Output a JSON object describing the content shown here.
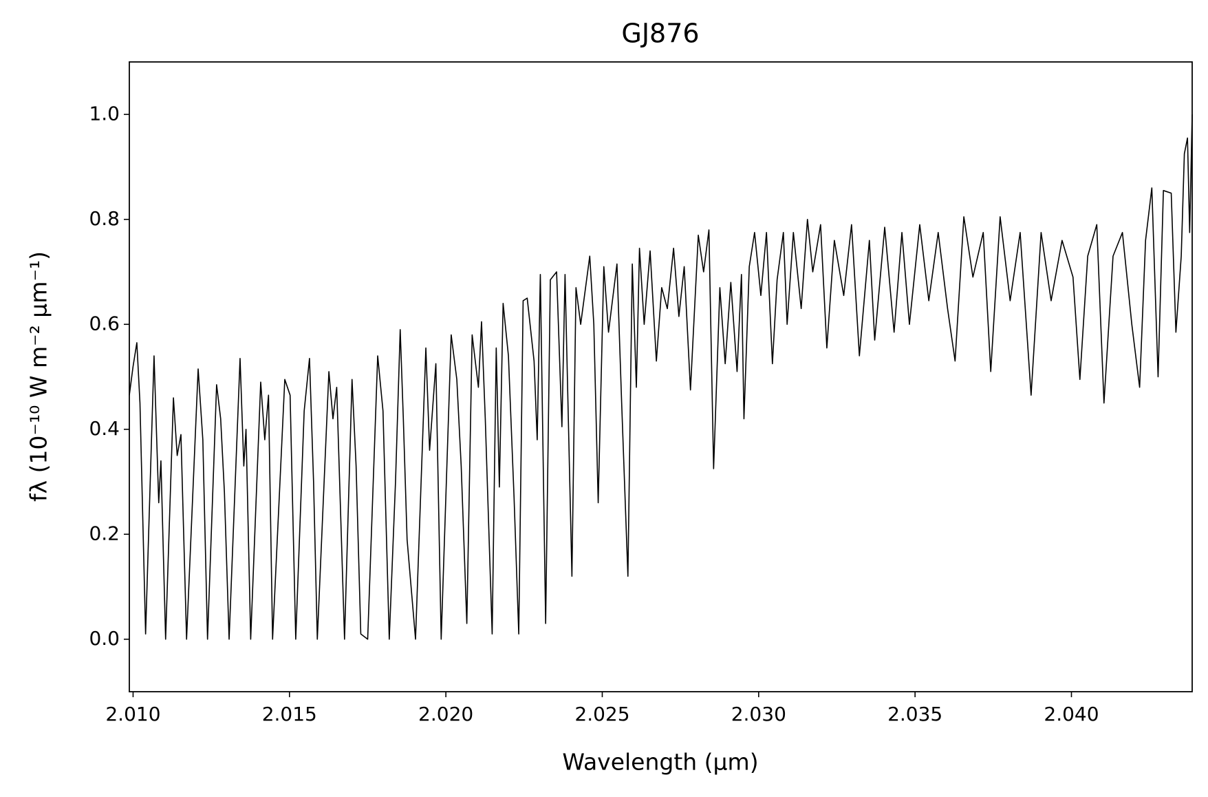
{
  "chart_data": {
    "type": "line",
    "title": "GJ876",
    "xlabel": "Wavelength (μm)",
    "ylabel": "fλ (10⁻¹⁰ W m⁻² μm⁻¹)",
    "xlim": [
      2.00988,
      2.04386
    ],
    "ylim": [
      -0.1,
      1.1
    ],
    "xticks": [
      {
        "value": 2.01,
        "label": "2.010"
      },
      {
        "value": 2.015,
        "label": "2.015"
      },
      {
        "value": 2.02,
        "label": "2.020"
      },
      {
        "value": 2.025,
        "label": "2.025"
      },
      {
        "value": 2.03,
        "label": "2.030"
      },
      {
        "value": 2.035,
        "label": "2.035"
      },
      {
        "value": 2.04,
        "label": "2.040"
      }
    ],
    "yticks": [
      {
        "value": 0,
        "label": "0.0"
      },
      0.2,
      0.4,
      0.6,
      0.8,
      {
        "value": 1,
        "label": "1.0"
      }
    ],
    "grid": false,
    "x": [
      2.00988,
      2.01,
      2.01012,
      2.01022,
      2.0104,
      2.01067,
      2.01082,
      2.01089,
      2.01104,
      2.01129,
      2.01141,
      2.01153,
      2.01171,
      2.01208,
      2.01223,
      2.01238,
      2.01267,
      2.0128,
      2.01292,
      2.01307,
      2.01342,
      2.01354,
      2.01361,
      2.01376,
      2.01408,
      2.01421,
      2.01433,
      2.01446,
      2.01485,
      2.01502,
      2.0152,
      2.01547,
      2.01564,
      2.01577,
      2.01589,
      2.01626,
      2.01639,
      2.01651,
      2.01676,
      2.017,
      2.01713,
      2.01728,
      2.0175,
      2.01782,
      2.01799,
      2.01819,
      2.01839,
      2.01854,
      2.01864,
      2.01876,
      2.01903,
      2.01936,
      2.01948,
      2.01968,
      2.01985,
      2.02017,
      2.02035,
      2.02049,
      2.02067,
      2.02084,
      2.02104,
      2.02114,
      2.02126,
      2.02148,
      2.02161,
      2.02171,
      2.02183,
      2.022,
      2.02218,
      2.02233,
      2.02247,
      2.0226,
      2.02282,
      2.02292,
      2.02302,
      2.02319,
      2.02334,
      2.02354,
      2.02371,
      2.02381,
      2.02403,
      2.02416,
      2.02431,
      2.0246,
      2.02473,
      2.02487,
      2.02505,
      2.0252,
      2.02547,
      2.02562,
      2.02582,
      2.02596,
      2.02609,
      2.02619,
      2.02634,
      2.02653,
      2.02673,
      2.0269,
      2.02708,
      2.02728,
      2.02745,
      2.02762,
      2.02782,
      2.02807,
      2.02824,
      2.02841,
      2.02856,
      2.02876,
      2.02893,
      2.02911,
      2.02931,
      2.02945,
      2.02953,
      2.0297,
      2.02987,
      2.03007,
      2.03025,
      2.03044,
      2.03059,
      2.03079,
      2.03091,
      2.03111,
      2.03136,
      2.03156,
      2.03173,
      2.03198,
      2.03218,
      2.03242,
      2.03272,
      2.03297,
      2.03322,
      2.03354,
      2.03371,
      2.03403,
      2.03433,
      2.03458,
      2.03482,
      2.03515,
      2.03544,
      2.03574,
      2.03604,
      2.03628,
      2.03656,
      2.03685,
      2.03718,
      2.03742,
      2.03772,
      2.03804,
      2.03836,
      2.03871,
      2.03903,
      2.03935,
      2.0397,
      2.04005,
      2.04027,
      2.04052,
      2.04081,
      2.04104,
      2.04133,
      2.04163,
      2.04193,
      2.04218,
      2.04237,
      2.04257,
      2.04277,
      2.04294,
      2.04319,
      2.04334,
      2.04351,
      2.04361,
      2.04371,
      2.04378,
      2.04386
    ],
    "series": [
      {
        "name": "GJ876",
        "color": "#000000",
        "values": [
          0.465,
          0.52,
          0.565,
          0.45,
          0.01,
          0.54,
          0.26,
          0.34,
          0.0,
          0.46,
          0.35,
          0.39,
          0.0,
          0.515,
          0.38,
          0.0,
          0.485,
          0.42,
          0.28,
          0.0,
          0.535,
          0.33,
          0.4,
          0.0,
          0.49,
          0.38,
          0.465,
          0.0,
          0.495,
          0.465,
          0.0,
          0.435,
          0.535,
          0.3,
          0.0,
          0.51,
          0.42,
          0.48,
          0.0,
          0.495,
          0.33,
          0.01,
          0.0,
          0.54,
          0.435,
          0.0,
          0.3,
          0.59,
          0.42,
          0.19,
          0.0,
          0.555,
          0.36,
          0.525,
          0.0,
          0.58,
          0.495,
          0.33,
          0.03,
          0.58,
          0.48,
          0.605,
          0.42,
          0.01,
          0.555,
          0.29,
          0.64,
          0.54,
          0.27,
          0.01,
          0.645,
          0.65,
          0.53,
          0.38,
          0.695,
          0.03,
          0.685,
          0.7,
          0.405,
          0.695,
          0.12,
          0.67,
          0.6,
          0.73,
          0.6,
          0.26,
          0.71,
          0.585,
          0.715,
          0.45,
          0.12,
          0.715,
          0.48,
          0.745,
          0.6,
          0.74,
          0.53,
          0.67,
          0.63,
          0.745,
          0.615,
          0.71,
          0.475,
          0.77,
          0.7,
          0.78,
          0.325,
          0.67,
          0.525,
          0.68,
          0.51,
          0.695,
          0.42,
          0.71,
          0.775,
          0.655,
          0.775,
          0.525,
          0.685,
          0.775,
          0.6,
          0.775,
          0.63,
          0.8,
          0.7,
          0.79,
          0.555,
          0.76,
          0.655,
          0.79,
          0.54,
          0.76,
          0.57,
          0.785,
          0.585,
          0.775,
          0.6,
          0.79,
          0.645,
          0.775,
          0.63,
          0.53,
          0.805,
          0.69,
          0.775,
          0.51,
          0.805,
          0.645,
          0.775,
          0.465,
          0.775,
          0.645,
          0.76,
          0.69,
          0.495,
          0.73,
          0.79,
          0.45,
          0.73,
          0.775,
          0.6,
          0.48,
          0.76,
          0.86,
          0.5,
          0.855,
          0.85,
          0.585,
          0.73,
          0.925,
          0.955,
          0.775,
          1.0
        ]
      }
    ]
  }
}
